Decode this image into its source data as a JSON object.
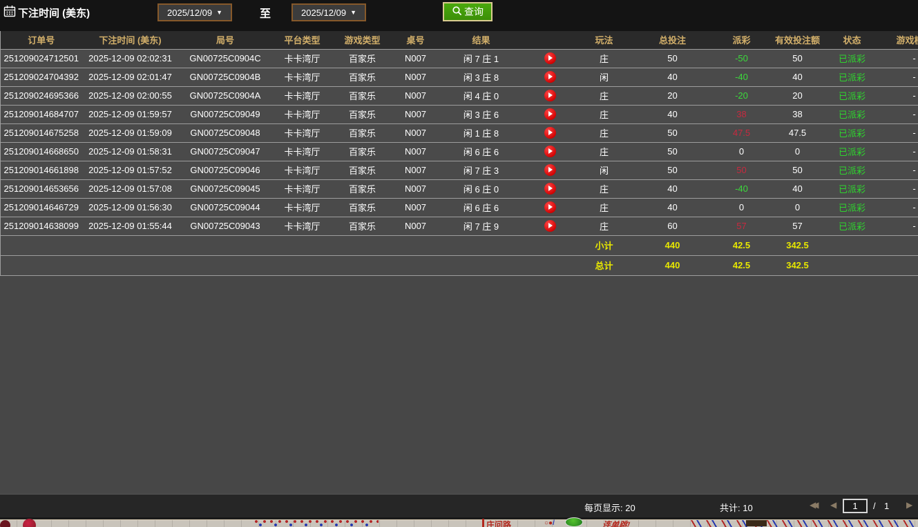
{
  "toolbar": {
    "time_label": "下注时间 (美东)",
    "date_from": "2025/12/09",
    "to_label": "至",
    "date_to": "2025/12/09",
    "search_label": "查询"
  },
  "colors": {
    "header_gold": "#d2af6a",
    "win_red": "#c8293f",
    "loss_green": "#3bdb3b",
    "paid_green": "#2ed52e",
    "total_yellow": "#e8e800",
    "button_green": "#3c8f08"
  },
  "table": {
    "columns": [
      {
        "key": "order",
        "label": "订单号"
      },
      {
        "key": "time",
        "label": "下注时间 (美东)"
      },
      {
        "key": "round",
        "label": "局号"
      },
      {
        "key": "platform",
        "label": "平台类型"
      },
      {
        "key": "game_type",
        "label": "游戏类型"
      },
      {
        "key": "table_no",
        "label": "桌号"
      },
      {
        "key": "result",
        "label": "结果"
      },
      {
        "key": "video",
        "label": ""
      },
      {
        "key": "play",
        "label": "玩法"
      },
      {
        "key": "total_bet",
        "label": "总投注"
      },
      {
        "key": "payout",
        "label": "派彩"
      },
      {
        "key": "valid_bet",
        "label": "有效投注额"
      },
      {
        "key": "status",
        "label": "状态"
      },
      {
        "key": "game_mode",
        "label": "游戏模式"
      }
    ],
    "rows": [
      {
        "order": "251209024712501",
        "time": "2025-12-09 02:02:31",
        "round": "GN00725C0904C",
        "platform": "卡卡湾厅",
        "game_type": "百家乐",
        "table_no": "N007",
        "result": "闲 7 庄 1",
        "play": "庄",
        "total_bet": "50",
        "payout": "-50",
        "payout_class": "neg",
        "valid_bet": "50",
        "status": "已派彩",
        "game_mode": "-"
      },
      {
        "order": "251209024704392",
        "time": "2025-12-09 02:01:47",
        "round": "GN00725C0904B",
        "platform": "卡卡湾厅",
        "game_type": "百家乐",
        "table_no": "N007",
        "result": "闲 3 庄 8",
        "play": "闲",
        "total_bet": "40",
        "payout": "-40",
        "payout_class": "neg",
        "valid_bet": "40",
        "status": "已派彩",
        "game_mode": "-"
      },
      {
        "order": "251209024695366",
        "time": "2025-12-09 02:00:55",
        "round": "GN00725C0904A",
        "platform": "卡卡湾厅",
        "game_type": "百家乐",
        "table_no": "N007",
        "result": "闲 4 庄 0",
        "play": "庄",
        "total_bet": "20",
        "payout": "-20",
        "payout_class": "neg",
        "valid_bet": "20",
        "status": "已派彩",
        "game_mode": "-"
      },
      {
        "order": "251209014684707",
        "time": "2025-12-09 01:59:57",
        "round": "GN00725C09049",
        "platform": "卡卡湾厅",
        "game_type": "百家乐",
        "table_no": "N007",
        "result": "闲 3 庄 6",
        "play": "庄",
        "total_bet": "40",
        "payout": "38",
        "payout_class": "pos",
        "valid_bet": "38",
        "status": "已派彩",
        "game_mode": "-"
      },
      {
        "order": "251209014675258",
        "time": "2025-12-09 01:59:09",
        "round": "GN00725C09048",
        "platform": "卡卡湾厅",
        "game_type": "百家乐",
        "table_no": "N007",
        "result": "闲 1 庄 8",
        "play": "庄",
        "total_bet": "50",
        "payout": "47.5",
        "payout_class": "pos",
        "valid_bet": "47.5",
        "status": "已派彩",
        "game_mode": "-"
      },
      {
        "order": "251209014668650",
        "time": "2025-12-09 01:58:31",
        "round": "GN00725C09047",
        "platform": "卡卡湾厅",
        "game_type": "百家乐",
        "table_no": "N007",
        "result": "闲 6 庄 6",
        "play": "庄",
        "total_bet": "50",
        "payout": "0",
        "payout_class": "zero",
        "valid_bet": "0",
        "status": "已派彩",
        "game_mode": "-"
      },
      {
        "order": "251209014661898",
        "time": "2025-12-09 01:57:52",
        "round": "GN00725C09046",
        "platform": "卡卡湾厅",
        "game_type": "百家乐",
        "table_no": "N007",
        "result": "闲 7 庄 3",
        "play": "闲",
        "total_bet": "50",
        "payout": "50",
        "payout_class": "pos",
        "valid_bet": "50",
        "status": "已派彩",
        "game_mode": "-"
      },
      {
        "order": "251209014653656",
        "time": "2025-12-09 01:57:08",
        "round": "GN00725C09045",
        "platform": "卡卡湾厅",
        "game_type": "百家乐",
        "table_no": "N007",
        "result": "闲 6 庄 0",
        "play": "庄",
        "total_bet": "40",
        "payout": "-40",
        "payout_class": "neg",
        "valid_bet": "40",
        "status": "已派彩",
        "game_mode": "-"
      },
      {
        "order": "251209014646729",
        "time": "2025-12-09 01:56:30",
        "round": "GN00725C09044",
        "platform": "卡卡湾厅",
        "game_type": "百家乐",
        "table_no": "N007",
        "result": "闲 6 庄 6",
        "play": "庄",
        "total_bet": "40",
        "payout": "0",
        "payout_class": "zero",
        "valid_bet": "0",
        "status": "已派彩",
        "game_mode": "-"
      },
      {
        "order": "251209014638099",
        "time": "2025-12-09 01:55:44",
        "round": "GN00725C09043",
        "platform": "卡卡湾厅",
        "game_type": "百家乐",
        "table_no": "N007",
        "result": "闲 7 庄 9",
        "play": "庄",
        "total_bet": "60",
        "payout": "57",
        "payout_class": "pos",
        "valid_bet": "57",
        "status": "已派彩",
        "game_mode": "-"
      }
    ],
    "subtotal": {
      "label": "小计",
      "total_bet": "440",
      "payout": "42.5",
      "valid_bet": "342.5"
    },
    "total": {
      "label": "总计",
      "total_bet": "440",
      "payout": "42.5",
      "valid_bet": "342.5"
    }
  },
  "pagination": {
    "per_page_label": "每页显示: 20",
    "total_label": "共计: 10",
    "current_page": "1",
    "page_sep": "/",
    "total_pages": "1"
  },
  "background_strip": {
    "road_label": "庄问路",
    "symbols": "○●",
    "slash": "/",
    "jump_label": "连单跳!"
  }
}
